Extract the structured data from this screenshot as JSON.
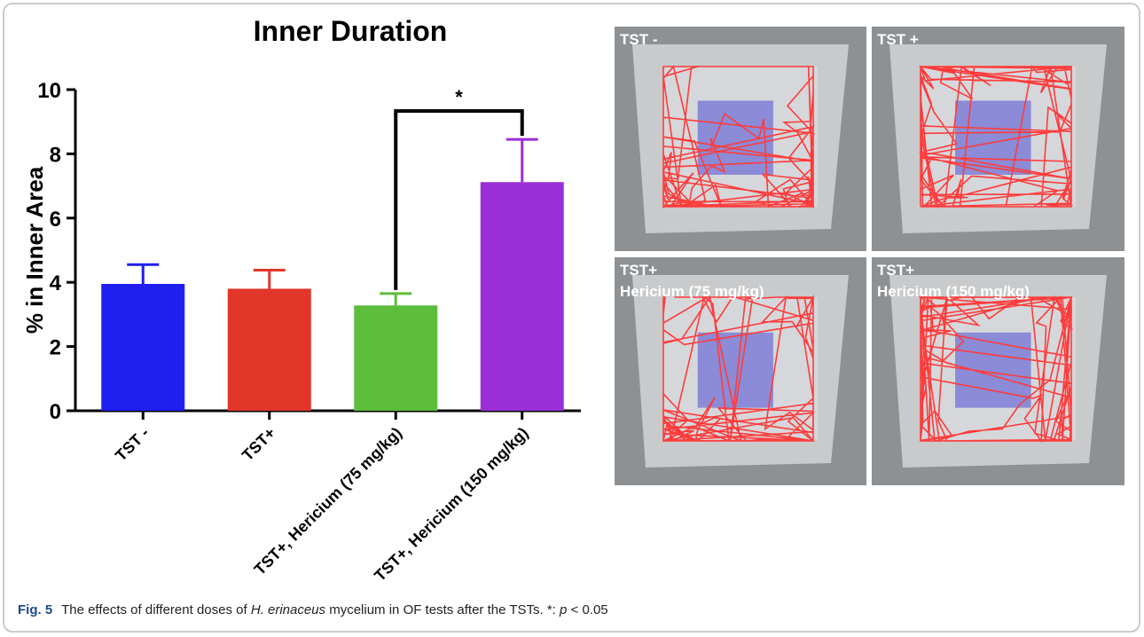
{
  "chart_data": {
    "type": "bar",
    "title": "Inner Duration",
    "y_label": "% in Inner Area",
    "categories": [
      "TST -",
      "TST+",
      "TST+, Hericium (75 mg/kg)",
      "TST+, Hericium (150 mg/kg)"
    ],
    "values": [
      3.95,
      3.8,
      3.28,
      7.12
    ],
    "errors": [
      0.6,
      0.58,
      0.37,
      1.33
    ],
    "colors": [
      "#1f1ff0",
      "#e2362a",
      "#5cbd3c",
      "#9a2fd8"
    ],
    "ylim": [
      0,
      10
    ],
    "yticks": [
      0,
      2,
      4,
      6,
      8,
      10
    ],
    "significance": {
      "between": [
        2,
        3
      ],
      "label": "*"
    }
  },
  "panels": [
    {
      "lines": [
        "TST -"
      ]
    },
    {
      "lines": [
        "TST +"
      ]
    },
    {
      "lines": [
        "TST+",
        "Hericium (75 mg/kg)"
      ]
    },
    {
      "lines": [
        "TST+",
        "Hericium (150 mg/kg)"
      ]
    }
  ],
  "caption": {
    "label": "Fig. 5",
    "parts": [
      "The effects of different doses of ",
      "H. erinaceus",
      " mycelium in OF tests after the TSTs. *: ",
      "p",
      " < 0.05"
    ]
  }
}
